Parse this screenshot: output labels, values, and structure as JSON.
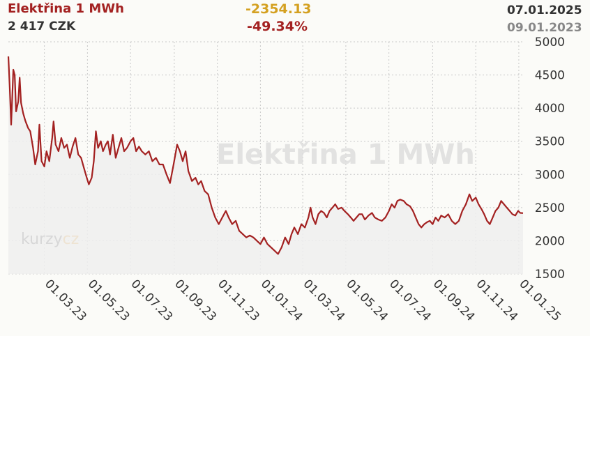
{
  "header": {
    "title": "Elektřina 1 MWh",
    "price": "2 417 CZK",
    "change_abs": "-2354.13",
    "change_pct": "-49.34%",
    "date_end": "07.01.2025",
    "date_start": "09.01.2023"
  },
  "logo": {
    "part1": "kurzy",
    "part2": "cz"
  },
  "colors": {
    "line": "#a32121",
    "title": "#a32121",
    "change_abs": "#d4a020",
    "grid": "#c8c8c8",
    "fill": "#eeeeee"
  },
  "chart_data": {
    "type": "line",
    "title": "Elektřina 1 MWh",
    "ylim": [
      1500,
      5000
    ],
    "yticks": [
      5000,
      4500,
      4000,
      3500,
      3000,
      2500,
      2000,
      1500
    ],
    "xticks": [
      "01.03.23",
      "01.05.23",
      "01.07.23",
      "01.09.23",
      "01.11.23",
      "01.01.24",
      "01.03.24",
      "01.05.24",
      "01.07.24",
      "01.09.24",
      "01.11.24",
      "01.01.25"
    ],
    "x_range": [
      "2023-01-09",
      "2025-01-07"
    ],
    "series": [
      {
        "name": "",
        "points": [
          [
            "2023-01-09",
            4780
          ],
          [
            "2023-01-11",
            4300
          ],
          [
            "2023-01-13",
            3750
          ],
          [
            "2023-01-16",
            4580
          ],
          [
            "2023-01-18",
            4500
          ],
          [
            "2023-01-20",
            3950
          ],
          [
            "2023-01-23",
            4100
          ],
          [
            "2023-01-25",
            4460
          ],
          [
            "2023-01-27",
            4080
          ],
          [
            "2023-01-30",
            3920
          ],
          [
            "2023-02-02",
            3810
          ],
          [
            "2023-02-06",
            3700
          ],
          [
            "2023-02-09",
            3650
          ],
          [
            "2023-02-13",
            3400
          ],
          [
            "2023-02-16",
            3150
          ],
          [
            "2023-02-20",
            3350
          ],
          [
            "2023-02-22",
            3750
          ],
          [
            "2023-02-25",
            3200
          ],
          [
            "2023-03-01",
            3120
          ],
          [
            "2023-03-04",
            3350
          ],
          [
            "2023-03-08",
            3200
          ],
          [
            "2023-03-12",
            3550
          ],
          [
            "2023-03-14",
            3800
          ],
          [
            "2023-03-17",
            3450
          ],
          [
            "2023-03-21",
            3350
          ],
          [
            "2023-03-25",
            3550
          ],
          [
            "2023-03-29",
            3400
          ],
          [
            "2023-04-02",
            3450
          ],
          [
            "2023-04-06",
            3250
          ],
          [
            "2023-04-10",
            3420
          ],
          [
            "2023-04-14",
            3550
          ],
          [
            "2023-04-18",
            3300
          ],
          [
            "2023-04-22",
            3250
          ],
          [
            "2023-04-26",
            3100
          ],
          [
            "2023-04-30",
            2950
          ],
          [
            "2023-05-03",
            2850
          ],
          [
            "2023-05-07",
            2950
          ],
          [
            "2023-05-10",
            3200
          ],
          [
            "2023-05-13",
            3650
          ],
          [
            "2023-05-16",
            3400
          ],
          [
            "2023-05-20",
            3500
          ],
          [
            "2023-05-23",
            3350
          ],
          [
            "2023-05-27",
            3450
          ],
          [
            "2023-05-30",
            3500
          ],
          [
            "2023-06-02",
            3300
          ],
          [
            "2023-06-06",
            3600
          ],
          [
            "2023-06-10",
            3250
          ],
          [
            "2023-06-14",
            3400
          ],
          [
            "2023-06-18",
            3550
          ],
          [
            "2023-06-22",
            3350
          ],
          [
            "2023-06-26",
            3400
          ],
          [
            "2023-07-01",
            3500
          ],
          [
            "2023-07-05",
            3550
          ],
          [
            "2023-07-09",
            3350
          ],
          [
            "2023-07-13",
            3420
          ],
          [
            "2023-07-17",
            3350
          ],
          [
            "2023-07-22",
            3300
          ],
          [
            "2023-07-27",
            3350
          ],
          [
            "2023-08-01",
            3200
          ],
          [
            "2023-08-06",
            3250
          ],
          [
            "2023-08-11",
            3150
          ],
          [
            "2023-08-16",
            3150
          ],
          [
            "2023-08-21",
            3000
          ],
          [
            "2023-08-26",
            2870
          ],
          [
            "2023-08-31",
            3150
          ],
          [
            "2023-09-05",
            3450
          ],
          [
            "2023-09-09",
            3350
          ],
          [
            "2023-09-13",
            3200
          ],
          [
            "2023-09-17",
            3350
          ],
          [
            "2023-09-21",
            3050
          ],
          [
            "2023-09-26",
            2900
          ],
          [
            "2023-10-01",
            2950
          ],
          [
            "2023-10-05",
            2850
          ],
          [
            "2023-10-09",
            2900
          ],
          [
            "2023-10-14",
            2750
          ],
          [
            "2023-10-19",
            2700
          ],
          [
            "2023-10-24",
            2500
          ],
          [
            "2023-10-29",
            2350
          ],
          [
            "2023-11-03",
            2250
          ],
          [
            "2023-11-08",
            2350
          ],
          [
            "2023-11-13",
            2450
          ],
          [
            "2023-11-17",
            2350
          ],
          [
            "2023-11-22",
            2250
          ],
          [
            "2023-11-27",
            2300
          ],
          [
            "2023-12-02",
            2150
          ],
          [
            "2023-12-07",
            2100
          ],
          [
            "2023-12-12",
            2050
          ],
          [
            "2023-12-17",
            2080
          ],
          [
            "2023-12-22",
            2050
          ],
          [
            "2023-12-27",
            2000
          ],
          [
            "2024-01-01",
            1950
          ],
          [
            "2024-01-06",
            2050
          ],
          [
            "2024-01-11",
            1950
          ],
          [
            "2024-01-16",
            1900
          ],
          [
            "2024-01-21",
            1850
          ],
          [
            "2024-01-26",
            1800
          ],
          [
            "2024-01-31",
            1900
          ],
          [
            "2024-02-05",
            2050
          ],
          [
            "2024-02-10",
            1950
          ],
          [
            "2024-02-14",
            2100
          ],
          [
            "2024-02-18",
            2200
          ],
          [
            "2024-02-23",
            2100
          ],
          [
            "2024-02-28",
            2250
          ],
          [
            "2024-03-04",
            2200
          ],
          [
            "2024-03-09",
            2350
          ],
          [
            "2024-03-12",
            2500
          ],
          [
            "2024-03-15",
            2350
          ],
          [
            "2024-03-19",
            2250
          ],
          [
            "2024-03-23",
            2400
          ],
          [
            "2024-03-27",
            2450
          ],
          [
            "2024-03-31",
            2420
          ],
          [
            "2024-04-04",
            2350
          ],
          [
            "2024-04-08",
            2450
          ],
          [
            "2024-04-12",
            2500
          ],
          [
            "2024-04-16",
            2550
          ],
          [
            "2024-04-20",
            2480
          ],
          [
            "2024-04-25",
            2500
          ],
          [
            "2024-04-29",
            2450
          ],
          [
            "2024-05-04",
            2400
          ],
          [
            "2024-05-08",
            2350
          ],
          [
            "2024-05-12",
            2300
          ],
          [
            "2024-05-16",
            2350
          ],
          [
            "2024-05-20",
            2400
          ],
          [
            "2024-05-24",
            2400
          ],
          [
            "2024-05-28",
            2320
          ],
          [
            "2024-06-02",
            2380
          ],
          [
            "2024-06-07",
            2420
          ],
          [
            "2024-06-11",
            2350
          ],
          [
            "2024-06-16",
            2320
          ],
          [
            "2024-06-21",
            2300
          ],
          [
            "2024-06-26",
            2350
          ],
          [
            "2024-07-01",
            2450
          ],
          [
            "2024-07-05",
            2550
          ],
          [
            "2024-07-09",
            2500
          ],
          [
            "2024-07-13",
            2600
          ],
          [
            "2024-07-17",
            2620
          ],
          [
            "2024-07-22",
            2600
          ],
          [
            "2024-07-26",
            2550
          ],
          [
            "2024-07-31",
            2520
          ],
          [
            "2024-08-04",
            2450
          ],
          [
            "2024-08-08",
            2350
          ],
          [
            "2024-08-12",
            2250
          ],
          [
            "2024-08-16",
            2200
          ],
          [
            "2024-08-20",
            2250
          ],
          [
            "2024-08-24",
            2280
          ],
          [
            "2024-08-28",
            2300
          ],
          [
            "2024-09-01",
            2250
          ],
          [
            "2024-09-05",
            2350
          ],
          [
            "2024-09-09",
            2300
          ],
          [
            "2024-09-13",
            2380
          ],
          [
            "2024-09-18",
            2350
          ],
          [
            "2024-09-23",
            2400
          ],
          [
            "2024-09-28",
            2300
          ],
          [
            "2024-10-03",
            2250
          ],
          [
            "2024-10-08",
            2300
          ],
          [
            "2024-10-13",
            2450
          ],
          [
            "2024-10-18",
            2550
          ],
          [
            "2024-10-23",
            2700
          ],
          [
            "2024-10-27",
            2600
          ],
          [
            "2024-11-01",
            2650
          ],
          [
            "2024-11-05",
            2550
          ],
          [
            "2024-11-09",
            2480
          ],
          [
            "2024-11-13",
            2400
          ],
          [
            "2024-11-17",
            2300
          ],
          [
            "2024-11-21",
            2250
          ],
          [
            "2024-11-25",
            2350
          ],
          [
            "2024-11-29",
            2450
          ],
          [
            "2024-12-03",
            2500
          ],
          [
            "2024-12-07",
            2600
          ],
          [
            "2024-12-11",
            2550
          ],
          [
            "2024-12-15",
            2500
          ],
          [
            "2024-12-19",
            2450
          ],
          [
            "2024-12-23",
            2400
          ],
          [
            "2024-12-27",
            2380
          ],
          [
            "2024-12-31",
            2450
          ],
          [
            "2025-01-03",
            2420
          ],
          [
            "2025-01-07",
            2417
          ]
        ]
      }
    ],
    "grid": true,
    "y_axis_position": "right"
  }
}
